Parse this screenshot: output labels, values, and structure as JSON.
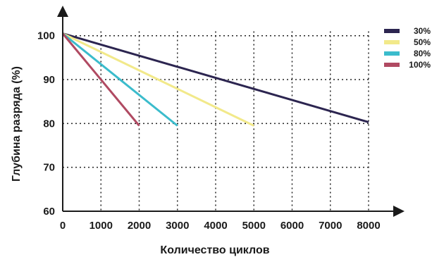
{
  "chart_data": {
    "type": "line",
    "xlabel": "Количество циклов",
    "ylabel": "Глубина разряда (%)",
    "xlim": [
      0,
      8000
    ],
    "ylim": [
      60,
      101
    ],
    "x_ticks": [
      "0",
      "1000",
      "2000",
      "3000",
      "4000",
      "5000",
      "6000",
      "7000",
      "8000"
    ],
    "y_ticks": [
      "60",
      "70",
      "80",
      "90",
      "100"
    ],
    "grid": "dotted",
    "legend_position": "top-right",
    "series": [
      {
        "name": "30%",
        "color": "#2c2550",
        "points": [
          [
            0,
            100.5
          ],
          [
            8000,
            80.3
          ]
        ]
      },
      {
        "name": "50%",
        "color": "#f2e98a",
        "points": [
          [
            0,
            100.5
          ],
          [
            5000,
            79.5
          ]
        ]
      },
      {
        "name": "80%",
        "color": "#3bbccc",
        "points": [
          [
            0,
            100.5
          ],
          [
            3000,
            79.5
          ]
        ]
      },
      {
        "name": "100%",
        "color": "#b04a62",
        "points": [
          [
            0,
            100.5
          ],
          [
            2000,
            79.5
          ]
        ]
      }
    ]
  }
}
